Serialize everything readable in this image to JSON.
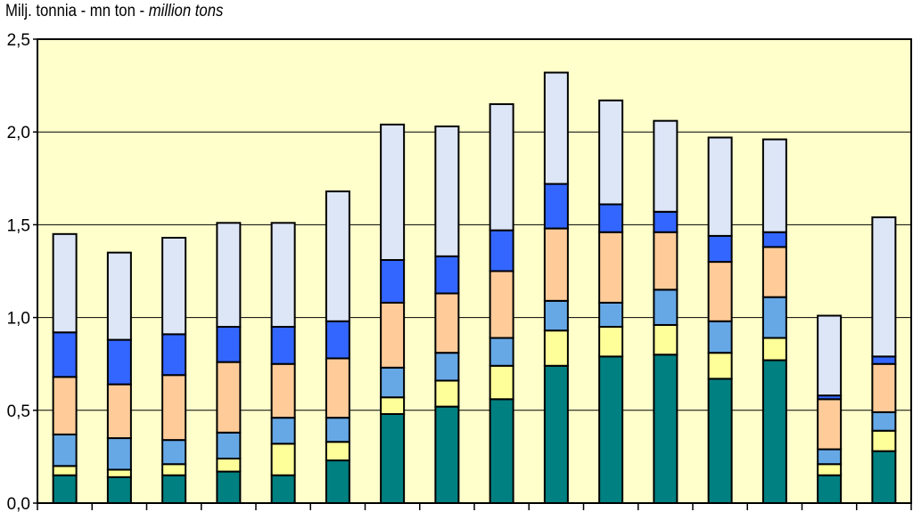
{
  "chart_data": {
    "type": "bar",
    "stacked": true,
    "title": {
      "prefix": "Milj. tonnia - mn ton - ",
      "italic": "million tons"
    },
    "ylim": [
      0,
      2.5
    ],
    "yticks": [
      "0,0",
      "0,5",
      "1,0",
      "1,5",
      "2,0",
      "2,5"
    ],
    "grid": true,
    "background": "#ffffcc",
    "category_count": 16,
    "series": [
      {
        "color": "#008080",
        "values": [
          0.15,
          0.14,
          0.15,
          0.17,
          0.15,
          0.23,
          0.48,
          0.52,
          0.56,
          0.74,
          0.79,
          0.8,
          0.67,
          0.77,
          0.15,
          0.28
        ]
      },
      {
        "color": "#ffff99",
        "values": [
          0.05,
          0.04,
          0.06,
          0.07,
          0.17,
          0.1,
          0.09,
          0.14,
          0.18,
          0.19,
          0.16,
          0.16,
          0.14,
          0.12,
          0.06,
          0.11
        ]
      },
      {
        "color": "#66a8e6",
        "values": [
          0.17,
          0.17,
          0.13,
          0.14,
          0.14,
          0.13,
          0.16,
          0.15,
          0.15,
          0.16,
          0.13,
          0.19,
          0.17,
          0.22,
          0.08,
          0.1
        ]
      },
      {
        "color": "#ffcc99",
        "values": [
          0.31,
          0.29,
          0.35,
          0.38,
          0.29,
          0.32,
          0.35,
          0.32,
          0.36,
          0.39,
          0.38,
          0.31,
          0.32,
          0.27,
          0.27,
          0.26
        ]
      },
      {
        "color": "#3366ff",
        "values": [
          0.24,
          0.24,
          0.22,
          0.19,
          0.2,
          0.2,
          0.23,
          0.2,
          0.22,
          0.24,
          0.15,
          0.11,
          0.14,
          0.08,
          0.02,
          0.04
        ]
      },
      {
        "color": "#dde6f7",
        "values": [
          0.53,
          0.47,
          0.52,
          0.56,
          0.56,
          0.7,
          0.73,
          0.7,
          0.68,
          0.6,
          0.56,
          0.49,
          0.53,
          0.5,
          0.43,
          0.75
        ]
      }
    ]
  }
}
